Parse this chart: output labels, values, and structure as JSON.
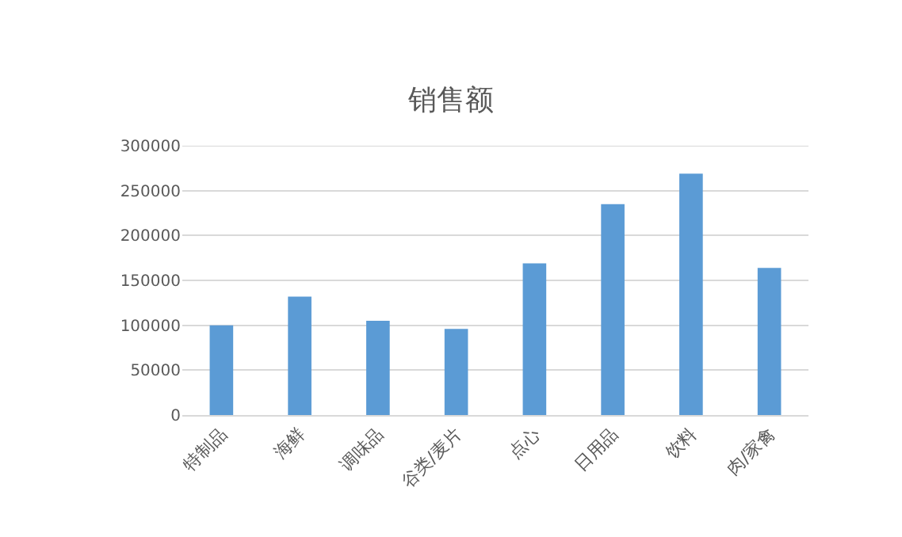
{
  "chart_data": {
    "type": "bar",
    "title": "销售额",
    "categories": [
      "特制品",
      "海鲜",
      "调味品",
      "谷类/麦片",
      "点心",
      "日用品",
      "饮料",
      "肉/家禽"
    ],
    "values": [
      100000,
      132000,
      105000,
      96000,
      169000,
      235000,
      269000,
      164000
    ],
    "color": "#5b9bd5",
    "ylim": [
      0,
      300000
    ],
    "yticks": [
      0,
      50000,
      100000,
      150000,
      200000,
      250000,
      300000
    ],
    "grid": "y",
    "legend": false
  }
}
